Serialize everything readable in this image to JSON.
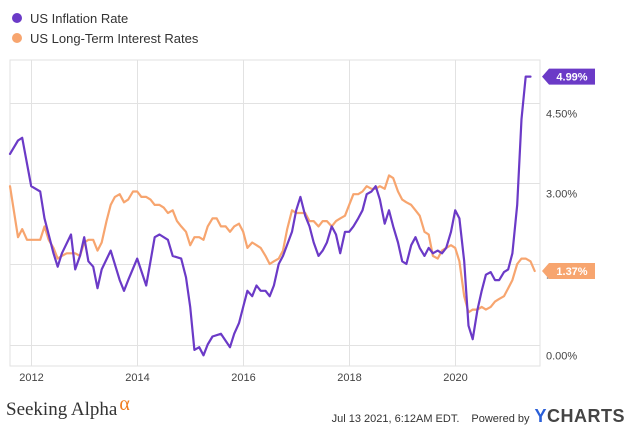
{
  "colors": {
    "inflation": "#6b3ac7",
    "interest": "#f7a56f",
    "grid": "#e2e2e2",
    "axis_text": "#444444"
  },
  "legend": [
    {
      "label": "US Inflation Rate",
      "color": "#6b3ac7"
    },
    {
      "label": "US Long-Term Interest Rates",
      "color": "#f7a56f"
    }
  ],
  "footer": {
    "brand": "Seeking Alpha",
    "brand_symbol": "α",
    "timestamp": "Jul 13 2021, 6:12AM EDT.",
    "powered_by": "Powered by",
    "ycharts_y": "Y",
    "ycharts_rest": "CHARTS"
  },
  "chart_data": {
    "type": "line",
    "title": "",
    "xlabel": "",
    "ylabel": "",
    "xlim": [
      2011.6,
      2021.6
    ],
    "ylim": [
      -0.4,
      5.3
    ],
    "x_ticks": [
      2012,
      2014,
      2016,
      2018,
      2020
    ],
    "x_tick_labels": [
      "2012",
      "2014",
      "2016",
      "2018",
      "2020"
    ],
    "y_ticks": [
      0,
      1.5,
      3,
      4.5
    ],
    "y_tick_labels": [
      "0.00%",
      "1.50%",
      "3.00%",
      "4.50%"
    ],
    "grid": true,
    "legend_position": "top-left",
    "series": [
      {
        "name": "US Inflation Rate",
        "color": "#6b3ac7",
        "end_label": "4.99%",
        "x": [
          2011.6,
          2011.75,
          2011.83,
          2012.0,
          2012.17,
          2012.25,
          2012.42,
          2012.5,
          2012.58,
          2012.75,
          2012.83,
          2012.92,
          2013.0,
          2013.08,
          2013.17,
          2013.25,
          2013.33,
          2013.5,
          2013.67,
          2013.75,
          2013.83,
          2014.0,
          2014.17,
          2014.25,
          2014.33,
          2014.42,
          2014.58,
          2014.67,
          2014.83,
          2014.92,
          2015.0,
          2015.08,
          2015.17,
          2015.25,
          2015.33,
          2015.42,
          2015.58,
          2015.75,
          2015.83,
          2015.92,
          2016.0,
          2016.08,
          2016.17,
          2016.25,
          2016.33,
          2016.42,
          2016.5,
          2016.58,
          2016.67,
          2016.75,
          2016.92,
          2017.0,
          2017.08,
          2017.17,
          2017.25,
          2017.33,
          2017.42,
          2017.5,
          2017.58,
          2017.67,
          2017.75,
          2017.83,
          2017.92,
          2018.0,
          2018.08,
          2018.17,
          2018.25,
          2018.33,
          2018.42,
          2018.5,
          2018.58,
          2018.67,
          2018.75,
          2018.83,
          2018.92,
          2019.0,
          2019.08,
          2019.17,
          2019.25,
          2019.33,
          2019.42,
          2019.5,
          2019.58,
          2019.67,
          2019.75,
          2019.83,
          2019.92,
          2020.0,
          2020.08,
          2020.17,
          2020.25,
          2020.33,
          2020.42,
          2020.5,
          2020.58,
          2020.67,
          2020.75,
          2020.83,
          2020.92,
          2021.0,
          2021.08,
          2021.17,
          2021.25,
          2021.33,
          2021.42
        ],
        "y": [
          3.55,
          3.8,
          3.85,
          2.95,
          2.85,
          2.35,
          1.7,
          1.45,
          1.7,
          2.05,
          1.4,
          1.65,
          2.0,
          1.55,
          1.45,
          1.05,
          1.4,
          1.75,
          1.2,
          1.0,
          1.2,
          1.6,
          1.1,
          1.55,
          2.0,
          2.05,
          1.95,
          1.65,
          1.6,
          1.25,
          0.7,
          -0.1,
          -0.05,
          -0.2,
          0.0,
          0.15,
          0.2,
          -0.05,
          0.2,
          0.4,
          0.7,
          1.0,
          0.9,
          1.1,
          1.0,
          1.0,
          0.9,
          1.1,
          1.5,
          1.65,
          2.1,
          2.5,
          2.75,
          2.4,
          2.2,
          1.9,
          1.65,
          1.75,
          1.9,
          2.2,
          2.05,
          1.7,
          2.1,
          2.1,
          2.2,
          2.35,
          2.5,
          2.8,
          2.85,
          2.95,
          2.7,
          2.25,
          2.5,
          2.2,
          1.9,
          1.55,
          1.5,
          1.85,
          2.0,
          1.8,
          1.65,
          1.8,
          1.7,
          1.75,
          1.7,
          1.8,
          2.1,
          2.5,
          2.35,
          1.55,
          0.35,
          0.1,
          0.65,
          1.0,
          1.3,
          1.35,
          1.2,
          1.2,
          1.35,
          1.4,
          1.7,
          2.6,
          4.2,
          4.99,
          4.99
        ]
      },
      {
        "name": "US Long-Term Interest Rates",
        "color": "#f7a56f",
        "end_label": "1.37%",
        "x": [
          2011.6,
          2011.75,
          2011.83,
          2011.92,
          2012.0,
          2012.17,
          2012.25,
          2012.33,
          2012.42,
          2012.5,
          2012.58,
          2012.67,
          2012.75,
          2012.83,
          2012.92,
          2013.0,
          2013.08,
          2013.17,
          2013.25,
          2013.33,
          2013.42,
          2013.5,
          2013.58,
          2013.67,
          2013.75,
          2013.83,
          2013.92,
          2014.0,
          2014.08,
          2014.17,
          2014.25,
          2014.33,
          2014.42,
          2014.5,
          2014.58,
          2014.67,
          2014.75,
          2014.83,
          2014.92,
          2015.0,
          2015.08,
          2015.17,
          2015.25,
          2015.33,
          2015.42,
          2015.5,
          2015.58,
          2015.67,
          2015.75,
          2015.83,
          2015.92,
          2016.0,
          2016.08,
          2016.17,
          2016.25,
          2016.33,
          2016.42,
          2016.5,
          2016.58,
          2016.67,
          2016.75,
          2016.83,
          2016.92,
          2017.0,
          2017.08,
          2017.17,
          2017.25,
          2017.33,
          2017.42,
          2017.5,
          2017.58,
          2017.67,
          2017.75,
          2017.83,
          2017.92,
          2018.0,
          2018.08,
          2018.17,
          2018.25,
          2018.33,
          2018.42,
          2018.5,
          2018.58,
          2018.67,
          2018.75,
          2018.83,
          2018.92,
          2019.0,
          2019.08,
          2019.17,
          2019.25,
          2019.33,
          2019.42,
          2019.5,
          2019.58,
          2019.67,
          2019.75,
          2019.83,
          2019.92,
          2020.0,
          2020.08,
          2020.17,
          2020.25,
          2020.33,
          2020.42,
          2020.5,
          2020.58,
          2020.67,
          2020.75,
          2020.83,
          2020.92,
          2021.0,
          2021.08,
          2021.17,
          2021.25,
          2021.33,
          2021.42,
          2021.5
        ],
        "y": [
          2.95,
          2.0,
          2.15,
          1.95,
          1.95,
          1.95,
          2.2,
          1.95,
          1.8,
          1.6,
          1.65,
          1.7,
          1.7,
          1.7,
          1.65,
          1.9,
          1.95,
          1.95,
          1.75,
          1.9,
          2.3,
          2.6,
          2.75,
          2.8,
          2.65,
          2.7,
          2.85,
          2.85,
          2.75,
          2.75,
          2.7,
          2.6,
          2.6,
          2.55,
          2.45,
          2.5,
          2.3,
          2.2,
          2.1,
          1.85,
          2.0,
          2.0,
          1.95,
          2.2,
          2.35,
          2.35,
          2.2,
          2.2,
          2.1,
          2.2,
          2.25,
          2.1,
          1.8,
          1.9,
          1.85,
          1.8,
          1.65,
          1.5,
          1.55,
          1.6,
          1.75,
          2.15,
          2.5,
          2.45,
          2.45,
          2.45,
          2.3,
          2.3,
          2.2,
          2.3,
          2.3,
          2.2,
          2.3,
          2.35,
          2.4,
          2.6,
          2.8,
          2.8,
          2.85,
          2.95,
          2.9,
          2.9,
          2.95,
          2.9,
          3.15,
          3.1,
          2.85,
          2.7,
          2.65,
          2.6,
          2.5,
          2.4,
          2.1,
          2.05,
          1.65,
          1.6,
          1.75,
          1.8,
          1.85,
          1.8,
          1.55,
          0.9,
          0.6,
          0.65,
          0.65,
          0.7,
          0.65,
          0.7,
          0.8,
          0.85,
          0.9,
          1.05,
          1.2,
          1.5,
          1.6,
          1.6,
          1.55,
          1.37
        ]
      }
    ]
  }
}
